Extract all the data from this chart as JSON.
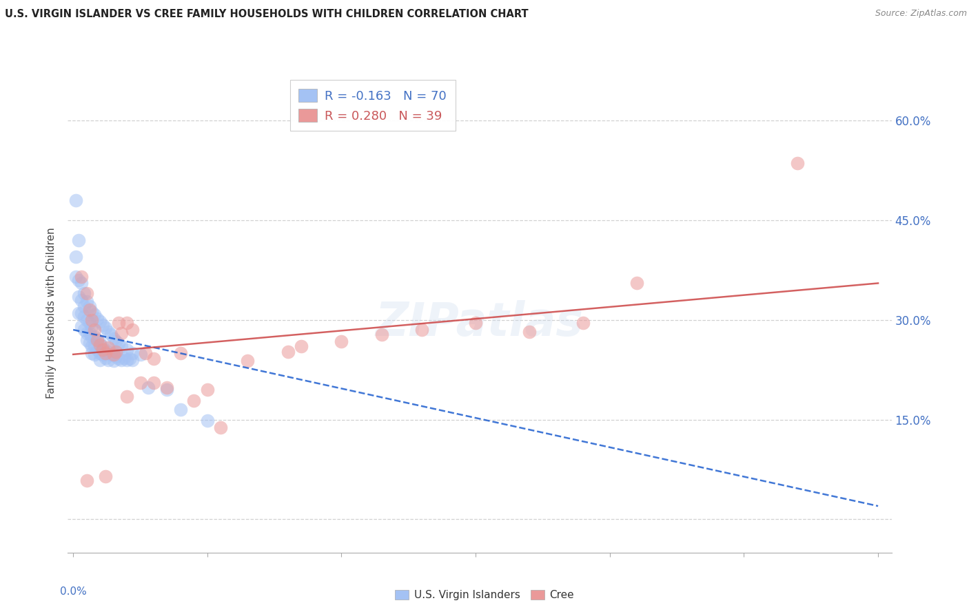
{
  "title": "U.S. VIRGIN ISLANDER VS CREE FAMILY HOUSEHOLDS WITH CHILDREN CORRELATION CHART",
  "source": "Source: ZipAtlas.com",
  "ylabel": "Family Households with Children",
  "yticks": [
    0.0,
    0.15,
    0.3,
    0.45,
    0.6
  ],
  "ytick_labels": [
    "",
    "15.0%",
    "30.0%",
    "45.0%",
    "60.0%"
  ],
  "xticks": [
    0.0,
    0.05,
    0.1,
    0.15,
    0.2,
    0.25,
    0.3
  ],
  "xlim": [
    -0.002,
    0.305
  ],
  "ylim": [
    -0.05,
    0.67
  ],
  "legend_blue_r": "R = -0.163",
  "legend_blue_n": "N = 70",
  "legend_pink_r": "R = 0.280",
  "legend_pink_n": "N = 39",
  "legend_label_blue": "U.S. Virgin Islanders",
  "legend_label_pink": "Cree",
  "blue_color": "#a4c2f4",
  "pink_color": "#ea9999",
  "blue_line_color": "#1155cc",
  "pink_line_color": "#cc4444",
  "watermark": "ZIPatlas",
  "blue_points_x": [
    0.001,
    0.001,
    0.002,
    0.002,
    0.002,
    0.003,
    0.003,
    0.003,
    0.004,
    0.004,
    0.004,
    0.005,
    0.005,
    0.005,
    0.006,
    0.006,
    0.006,
    0.007,
    0.007,
    0.007,
    0.007,
    0.008,
    0.008,
    0.008,
    0.009,
    0.009,
    0.01,
    0.01,
    0.01,
    0.011,
    0.011,
    0.012,
    0.012,
    0.013,
    0.013,
    0.014,
    0.015,
    0.015,
    0.016,
    0.017,
    0.018,
    0.019,
    0.02,
    0.021,
    0.022,
    0.001,
    0.002,
    0.003,
    0.004,
    0.005,
    0.006,
    0.007,
    0.008,
    0.009,
    0.01,
    0.011,
    0.012,
    0.013,
    0.014,
    0.015,
    0.016,
    0.017,
    0.018,
    0.02,
    0.022,
    0.025,
    0.028,
    0.035,
    0.04,
    0.05
  ],
  "blue_points_y": [
    0.395,
    0.365,
    0.36,
    0.335,
    0.31,
    0.33,
    0.31,
    0.29,
    0.32,
    0.305,
    0.285,
    0.3,
    0.28,
    0.27,
    0.295,
    0.28,
    0.265,
    0.29,
    0.275,
    0.26,
    0.25,
    0.275,
    0.26,
    0.248,
    0.27,
    0.255,
    0.265,
    0.25,
    0.24,
    0.26,
    0.248,
    0.255,
    0.243,
    0.252,
    0.24,
    0.248,
    0.25,
    0.238,
    0.245,
    0.242,
    0.24,
    0.243,
    0.24,
    0.242,
    0.24,
    0.48,
    0.42,
    0.355,
    0.34,
    0.328,
    0.32,
    0.312,
    0.308,
    0.302,
    0.298,
    0.292,
    0.288,
    0.282,
    0.278,
    0.272,
    0.268,
    0.264,
    0.26,
    0.255,
    0.25,
    0.248,
    0.198,
    0.195,
    0.165,
    0.148
  ],
  "pink_points_x": [
    0.003,
    0.005,
    0.006,
    0.007,
    0.008,
    0.009,
    0.01,
    0.011,
    0.012,
    0.013,
    0.015,
    0.016,
    0.017,
    0.018,
    0.02,
    0.022,
    0.025,
    0.027,
    0.03,
    0.035,
    0.04,
    0.045,
    0.05,
    0.055,
    0.065,
    0.08,
    0.085,
    0.1,
    0.115,
    0.13,
    0.15,
    0.17,
    0.19,
    0.21,
    0.005,
    0.012,
    0.02,
    0.03,
    0.27
  ],
  "pink_points_y": [
    0.365,
    0.34,
    0.315,
    0.3,
    0.285,
    0.27,
    0.262,
    0.255,
    0.25,
    0.258,
    0.248,
    0.252,
    0.295,
    0.28,
    0.295,
    0.285,
    0.205,
    0.25,
    0.242,
    0.198,
    0.25,
    0.178,
    0.195,
    0.138,
    0.238,
    0.252,
    0.26,
    0.268,
    0.278,
    0.285,
    0.295,
    0.282,
    0.295,
    0.355,
    0.058,
    0.065,
    0.185,
    0.205,
    0.535
  ],
  "blue_trend_x": [
    0.0,
    0.3
  ],
  "blue_trend_y": [
    0.285,
    0.02
  ],
  "pink_trend_x": [
    0.0,
    0.3
  ],
  "pink_trend_y": [
    0.248,
    0.355
  ]
}
